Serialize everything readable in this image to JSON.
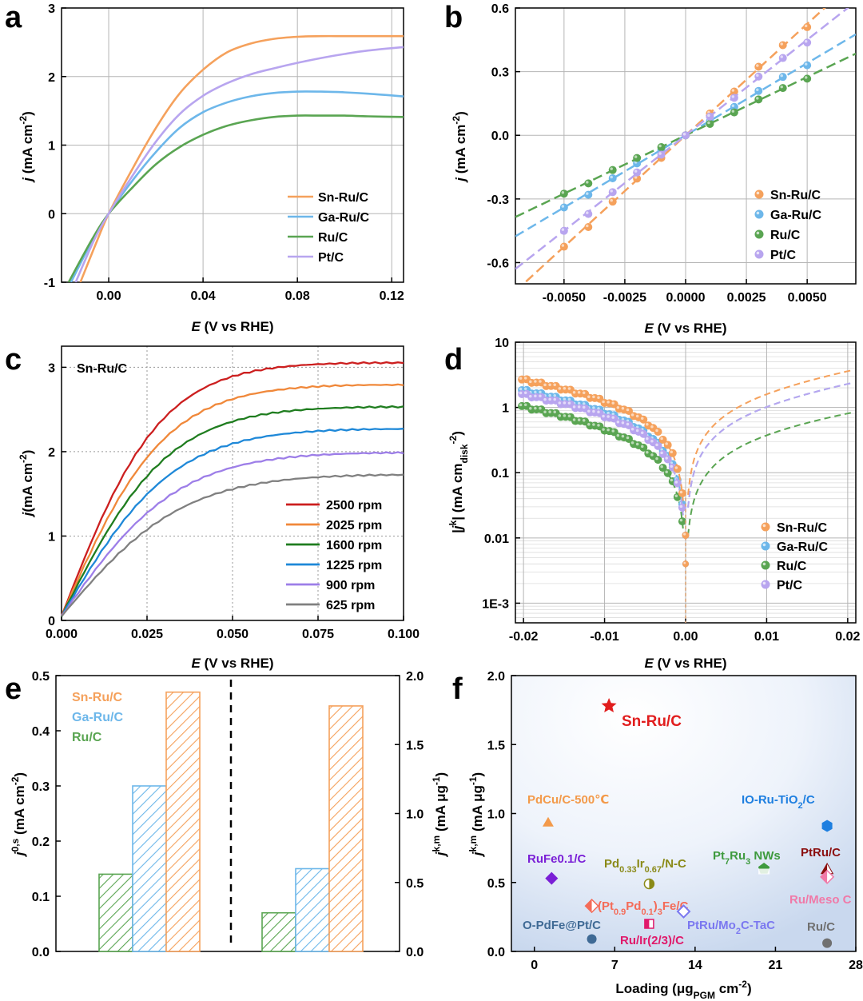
{
  "panels": {
    "a": "a",
    "b": "b",
    "c": "c",
    "d": "d",
    "e": "e",
    "f": "f"
  },
  "colors": {
    "Sn-Ru/C": "#f5a15c",
    "Ga-Ru/C": "#6db7ea",
    "Ru/C": "#5aa552",
    "Pt/C": "#b8a5ef"
  },
  "chart_data": [
    {
      "id": "a",
      "type": "line",
      "xlabel": "E (V vs RHE)",
      "ylabel": "j (mA cm-2)",
      "xlim": [
        -0.02,
        0.125
      ],
      "ylim": [
        -1,
        3
      ],
      "xticks": [
        0.0,
        0.04,
        0.08,
        0.12
      ],
      "xtick_labels": [
        "0.00",
        "0.04",
        "0.08",
        "0.12"
      ],
      "yticks": [
        -1,
        0,
        1,
        2,
        3
      ],
      "ytick_labels": [
        "-1",
        "0",
        "1",
        "2",
        "3"
      ],
      "series": [
        {
          "name": "Sn-Ru/C",
          "x": [
            -0.012,
            -0.005,
            0,
            0.01,
            0.02,
            0.03,
            0.04,
            0.05,
            0.06,
            0.07,
            0.08,
            0.09,
            0.1,
            0.11,
            0.125
          ],
          "y": [
            -1.0,
            -0.4,
            0,
            0.65,
            1.25,
            1.75,
            2.1,
            2.35,
            2.48,
            2.55,
            2.58,
            2.59,
            2.59,
            2.59,
            2.59
          ]
        },
        {
          "name": "Ga-Ru/C",
          "x": [
            -0.016,
            -0.006,
            0,
            0.01,
            0.02,
            0.03,
            0.04,
            0.05,
            0.06,
            0.07,
            0.08,
            0.09,
            0.1,
            0.11,
            0.125
          ],
          "y": [
            -1.0,
            -0.33,
            0,
            0.48,
            0.9,
            1.25,
            1.48,
            1.62,
            1.71,
            1.76,
            1.78,
            1.78,
            1.77,
            1.75,
            1.71
          ]
        },
        {
          "name": "Ru/C",
          "x": [
            -0.017,
            -0.007,
            0,
            0.01,
            0.02,
            0.03,
            0.04,
            0.05,
            0.06,
            0.07,
            0.08,
            0.09,
            0.1,
            0.11,
            0.125
          ],
          "y": [
            -1.0,
            -0.37,
            0,
            0.38,
            0.72,
            0.97,
            1.15,
            1.28,
            1.36,
            1.41,
            1.43,
            1.43,
            1.43,
            1.42,
            1.41
          ]
        },
        {
          "name": "Pt/C",
          "x": [
            -0.014,
            -0.006,
            0,
            0.01,
            0.02,
            0.03,
            0.04,
            0.05,
            0.06,
            0.07,
            0.08,
            0.09,
            0.1,
            0.11,
            0.125
          ],
          "y": [
            -1.0,
            -0.37,
            0,
            0.55,
            1.05,
            1.45,
            1.72,
            1.9,
            2.03,
            2.12,
            2.2,
            2.27,
            2.33,
            2.38,
            2.43
          ]
        }
      ],
      "legend": [
        "Sn-Ru/C",
        "Ga-Ru/C",
        "Ru/C",
        "Pt/C"
      ]
    },
    {
      "id": "b",
      "type": "scatter",
      "xlabel": "E (V vs RHE)",
      "ylabel": "j (mA cm-2)",
      "xlim": [
        -0.007,
        0.007
      ],
      "ylim": [
        -0.7,
        0.6
      ],
      "xticks": [
        -0.005,
        -0.0025,
        0,
        0.0025,
        0.005
      ],
      "xtick_labels": [
        "-0.0050",
        "-0.0025",
        "0.0000",
        "0.0025",
        "0.0050"
      ],
      "yticks": [
        -0.6,
        -0.3,
        0,
        0.3,
        0.6
      ],
      "ytick_labels": [
        "-0.6",
        "-0.3",
        "0.0",
        "0.3",
        "0.6"
      ],
      "series": [
        {
          "name": "Sn-Ru/C",
          "slope": 105
        },
        {
          "name": "Ga-Ru/C",
          "slope": 68
        },
        {
          "name": "Ru/C",
          "slope": 55
        },
        {
          "name": "Pt/C",
          "slope": 90
        }
      ],
      "x_points": [
        -0.005,
        -0.004,
        -0.003,
        -0.002,
        -0.001,
        0,
        0.001,
        0.002,
        0.003,
        0.004,
        0.005
      ],
      "legend": [
        "Sn-Ru/C",
        "Ga-Ru/C",
        "Ru/C",
        "Pt/C"
      ]
    },
    {
      "id": "c",
      "type": "line",
      "xlabel": "E (V vs RHE)",
      "ylabel": "j(mA cm-2)",
      "annotation": "Sn-Ru/C",
      "xlim": [
        0,
        0.1
      ],
      "ylim": [
        0,
        3.25
      ],
      "xticks": [
        0,
        0.025,
        0.05,
        0.075,
        0.1
      ],
      "xtick_labels": [
        "0.000",
        "0.025",
        "0.050",
        "0.075",
        "0.100"
      ],
      "yticks": [
        0,
        1,
        2,
        3
      ],
      "ytick_labels": [
        "0",
        "1",
        "2",
        "3"
      ],
      "series": [
        {
          "name": "2500 rpm",
          "color": "#cc1f1f",
          "limit": 3.06
        },
        {
          "name": "2025 rpm",
          "color": "#f0883a",
          "limit": 2.8
        },
        {
          "name": "1600 rpm",
          "color": "#1f7d1f",
          "limit": 2.54
        },
        {
          "name": "1225 rpm",
          "color": "#1e88d8",
          "limit": 2.28
        },
        {
          "name": "900 rpm",
          "color": "#9d7ee8",
          "limit": 2.0
        },
        {
          "name": "625 rpm",
          "color": "#808080",
          "limit": 1.74
        }
      ]
    },
    {
      "id": "d",
      "type": "scatter",
      "xlabel": "E (V vs RHE)",
      "ylabel": "|jk| (mA cm_disk-2)",
      "yscale": "log",
      "xlim": [
        -0.021,
        0.021
      ],
      "ylim": [
        0.0005,
        10
      ],
      "xticks": [
        -0.02,
        -0.01,
        0,
        0.01,
        0.02
      ],
      "xtick_labels": [
        "-0.02",
        "-0.01",
        "0.00",
        "0.01",
        "0.02"
      ],
      "yticks": [
        0.001,
        0.01,
        0.1,
        1,
        10
      ],
      "ytick_labels": [
        "1E-3",
        "0.01",
        "0.1",
        "1",
        "10"
      ],
      "series": [
        {
          "name": "Sn-Ru/C",
          "i0": 0.47,
          "b_left": 0.0255,
          "b_right": 0.02
        },
        {
          "name": "Ga-Ru/C",
          "i0": 0.3,
          "b_left": 0.024,
          "b_right": 0.02
        },
        {
          "name": "Ru/C",
          "i0": 0.14,
          "b_left": 0.0205,
          "b_right": 0.025
        },
        {
          "name": "Pt/C",
          "i0": 0.3,
          "b_left": 0.027,
          "b_right": 0.02
        }
      ],
      "legend": [
        "Sn-Ru/C",
        "Ga-Ru/C",
        "Ru/C",
        "Pt/C"
      ]
    },
    {
      "id": "e",
      "type": "bar",
      "ylabel_left": "j0,s (mA cm-2)",
      "ylabel_right": "jk,m (mA μg-1)",
      "ylim_left": [
        0,
        0.5
      ],
      "ylim_right": [
        0,
        2.0
      ],
      "yticks_left": [
        0.0,
        0.1,
        0.2,
        0.3,
        0.4,
        0.5
      ],
      "ytick_labels_left": [
        "0.0",
        "0.1",
        "0.2",
        "0.3",
        "0.4",
        "0.5"
      ],
      "yticks_right": [
        0.0,
        0.5,
        1.0,
        1.5,
        2.0
      ],
      "ytick_labels_right": [
        "0.0",
        "0.5",
        "1.0",
        "1.5",
        "2.0"
      ],
      "categories": [
        "Ru/C",
        "Ga-Ru/C",
        "Sn-Ru/C"
      ],
      "left_values": [
        0.14,
        0.3,
        0.47
      ],
      "right_values": [
        0.28,
        0.6,
        1.78
      ],
      "legend": [
        "Sn-Ru/C",
        "Ga-Ru/C",
        "Ru/C"
      ]
    },
    {
      "id": "f",
      "type": "scatter",
      "xlabel": "Loading (μg PGM cm-2)",
      "ylabel": "jk,m (mA μg-1)",
      "xlim": [
        -2,
        28
      ],
      "ylim": [
        0,
        2.0
      ],
      "xticks": [
        0,
        7,
        14,
        21,
        28
      ],
      "xtick_labels": [
        "0",
        "7",
        "14",
        "21",
        "28"
      ],
      "yticks": [
        0.0,
        0.5,
        1.0,
        1.5,
        2.0
      ],
      "ytick_labels": [
        "0.0",
        "0.5",
        "1.0",
        "1.5",
        "2.0"
      ],
      "points": [
        {
          "label": "Sn-Ru/C",
          "x": 6.5,
          "y": 1.78,
          "marker": "star",
          "color": "#e11d1d"
        },
        {
          "label": "PdCu/C-500℃",
          "x": 1.2,
          "y": 0.94,
          "marker": "triangle",
          "color": "#f39a4a"
        },
        {
          "label": "IO-Ru-TiO2/C",
          "x": 25.5,
          "y": 0.91,
          "marker": "hexagon",
          "color": "#1e7fe0"
        },
        {
          "label": "RuFe0.1/C",
          "x": 1.5,
          "y": 0.53,
          "marker": "diamond",
          "color": "#7a1fd6"
        },
        {
          "label": "Pd0.33Ir0.67/N-C",
          "x": 10.0,
          "y": 0.49,
          "marker": "halfcircle",
          "color": "#8a8a18"
        },
        {
          "label": "Pt7Ru3 NWs",
          "x": 20.0,
          "y": 0.6,
          "marker": "pentagon",
          "color": "#3e9a3e"
        },
        {
          "label": "PtRu/C",
          "x": 25.5,
          "y": 0.6,
          "marker": "halftri",
          "color": "#8b0f0f"
        },
        {
          "label": "Ru/Meso C",
          "x": 25.5,
          "y": 0.54,
          "marker": "halfdiamond",
          "color": "#f07aa8"
        },
        {
          "label": "(Pt0.9Pd0.1)3Fe/C",
          "x": 5.0,
          "y": 0.33,
          "marker": "halfdiamond",
          "color": "#f46b58"
        },
        {
          "label": "PtRu/Mo2C-TaC",
          "x": 13.0,
          "y": 0.29,
          "marker": "diamond-o",
          "color": "#7b78f0"
        },
        {
          "label": "Ru/Ir(2/3)/C",
          "x": 10.0,
          "y": 0.2,
          "marker": "halfsquare",
          "color": "#e0196a"
        },
        {
          "label": "O-PdFe@Pt/C",
          "x": 5.0,
          "y": 0.09,
          "marker": "circle",
          "color": "#3f6a95"
        },
        {
          "label": "Ru/C",
          "x": 25.5,
          "y": 0.06,
          "marker": "circle",
          "color": "#707070"
        }
      ]
    }
  ]
}
